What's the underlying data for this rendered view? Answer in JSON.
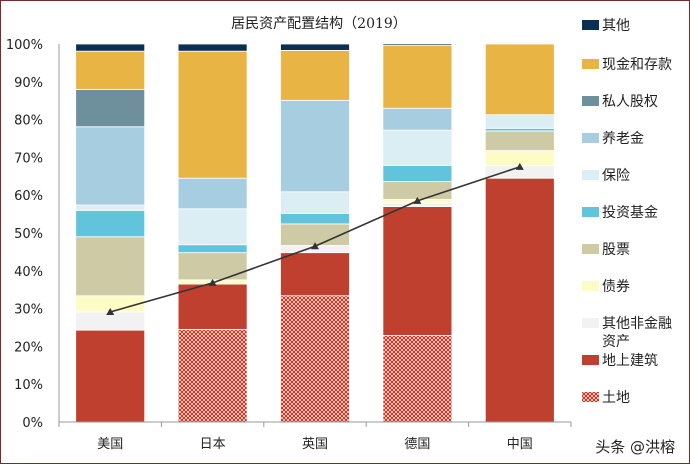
{
  "chart_data": {
    "type": "bar",
    "stacked": true,
    "title": "居民资产配置结构（2019）",
    "categories": [
      "美国",
      "日本",
      "英国",
      "德国",
      "中国"
    ],
    "ylim": [
      0,
      100
    ],
    "y_ticks": [
      "0%",
      "10%",
      "20%",
      "30%",
      "40%",
      "50%",
      "60%",
      "70%",
      "80%",
      "90%",
      "100%"
    ],
    "grid": false,
    "legend_position": "right",
    "series": [
      {
        "name": "土地",
        "color": "#c0402f",
        "pattern": "hatched",
        "values": [
          0,
          24.5,
          33.4,
          22.9,
          0
        ]
      },
      {
        "name": "地上建筑",
        "color": "#c0402f",
        "values": [
          24.3,
          12.0,
          11.4,
          34.1,
          64.5
        ]
      },
      {
        "name": "其他非金融资产",
        "color": "#f2f2f2",
        "values": [
          4.8,
          0,
          1.9,
          1.0,
          3.3
        ]
      },
      {
        "name": "债券",
        "color": "#fdfcc4",
        "values": [
          4.3,
          1.1,
          0,
          0.9,
          4.0
        ]
      },
      {
        "name": "股票",
        "color": "#cfcaa6",
        "values": [
          15.6,
          7.2,
          5.7,
          4.7,
          5.2
        ]
      },
      {
        "name": "投资基金",
        "color": "#62c3dc",
        "values": [
          7.0,
          2.1,
          2.8,
          4.3,
          0.7
        ]
      },
      {
        "name": "保险",
        "color": "#daeef4",
        "values": [
          1.4,
          9.5,
          5.7,
          9.3,
          3.6
        ]
      },
      {
        "name": "养老金",
        "color": "#a6cde0",
        "values": [
          20.7,
          8.1,
          24.2,
          5.8,
          0
        ]
      },
      {
        "name": "私人股权",
        "color": "#6e909c",
        "values": [
          9.9,
          0,
          0,
          0,
          0
        ]
      },
      {
        "name": "现金和存款",
        "color": "#e8b443",
        "values": [
          10.1,
          33.6,
          13.2,
          16.6,
          18.7
        ]
      },
      {
        "name": "其他",
        "color": "#0b3050",
        "values": [
          1.9,
          1.9,
          1.7,
          0.4,
          0
        ]
      }
    ],
    "line": {
      "color": "#333333",
      "marker": "triangle",
      "values": [
        29.1,
        36.8,
        46.5,
        58.5,
        67.5
      ]
    }
  },
  "legend": [
    {
      "label": "其他",
      "color": "#0b3050"
    },
    {
      "label": "现金和存款",
      "color": "#e8b443"
    },
    {
      "label": "私人股权",
      "color": "#6e909c"
    },
    {
      "label": "养老金",
      "color": "#a6cde0"
    },
    {
      "label": "保险",
      "color": "#daeef4"
    },
    {
      "label": "投资基金",
      "color": "#62c3dc"
    },
    {
      "label": "股票",
      "color": "#cfcaa6"
    },
    {
      "label": "债券",
      "color": "#fdfcc4"
    },
    {
      "label": "其他非金融资产",
      "line1": "其他非金融",
      "line2": "资产",
      "color": "#f2f2f2"
    },
    {
      "label": "地上建筑",
      "color": "#c0402f"
    },
    {
      "label": "土地",
      "color": "#c0402f",
      "pattern": "hatched"
    }
  ],
  "watermark": "头条 @洪榕"
}
